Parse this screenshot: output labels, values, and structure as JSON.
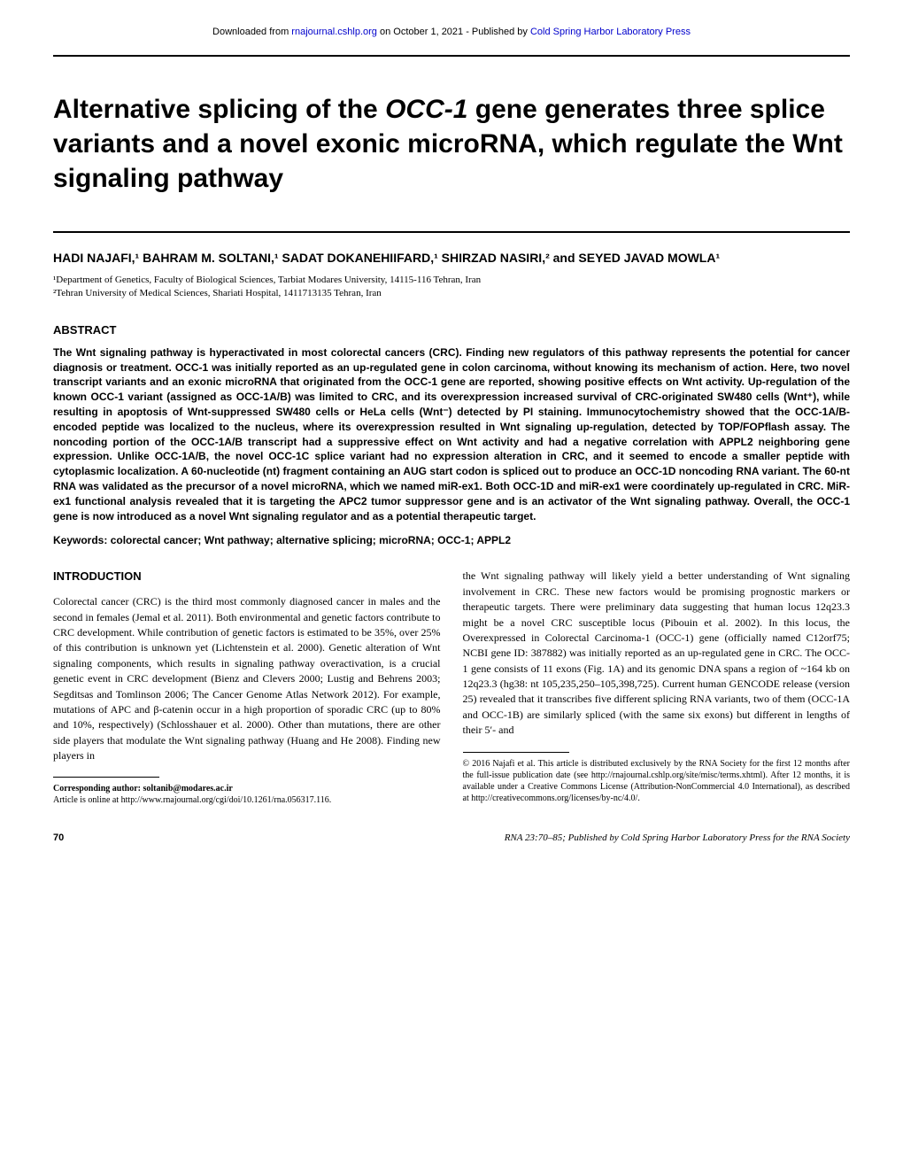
{
  "download": {
    "prefix": "Downloaded from ",
    "link1_text": "rnajournal.cshlp.org",
    "middle": " on October 1, 2021 - Published by ",
    "link2_text": "Cold Spring Harbor Laboratory Press"
  },
  "title_parts": {
    "p1": "Alternative splicing of the ",
    "gene": "OCC-1",
    "p2": " gene generates three splice variants and a novel exonic microRNA, which regulate the Wnt signaling pathway"
  },
  "authors": "HADI NAJAFI,¹ BAHRAM M. SOLTANI,¹ SADAT DOKANEHIIFARD,¹ SHIRZAD NASIRI,² and SEYED JAVAD MOWLA¹",
  "affiliations": {
    "a1": "¹Department of Genetics, Faculty of Biological Sciences, Tarbiat Modares University, 14115-116 Tehran, Iran",
    "a2": "²Tehran University of Medical Sciences, Shariati Hospital, 1411713135 Tehran, Iran"
  },
  "abstract_heading": "ABSTRACT",
  "abstract_text": "The Wnt signaling pathway is hyperactivated in most colorectal cancers (CRC). Finding new regulators of this pathway represents the potential for cancer diagnosis or treatment. OCC-1 was initially reported as an up-regulated gene in colon carcinoma, without knowing its mechanism of action. Here, two novel transcript variants and an exonic microRNA that originated from the OCC-1 gene are reported, showing positive effects on Wnt activity. Up-regulation of the known OCC-1 variant (assigned as OCC-1A/B) was limited to CRC, and its overexpression increased survival of CRC-originated SW480 cells (Wnt⁺), while resulting in apoptosis of Wnt-suppressed SW480 cells or HeLa cells (Wnt⁻) detected by PI staining. Immunocytochemistry showed that the OCC-1A/B-encoded peptide was localized to the nucleus, where its overexpression resulted in Wnt signaling up-regulation, detected by TOP/FOPflash assay. The noncoding portion of the OCC-1A/B transcript had a suppressive effect on Wnt activity and had a negative correlation with APPL2 neighboring gene expression. Unlike OCC-1A/B, the novel OCC-1C splice variant had no expression alteration in CRC, and it seemed to encode a smaller peptide with cytoplasmic localization. A 60-nucleotide (nt) fragment containing an AUG start codon is spliced out to produce an OCC-1D noncoding RNA variant. The 60-nt RNA was validated as the precursor of a novel microRNA, which we named miR-ex1. Both OCC-1D and miR-ex1 were coordinately up-regulated in CRC. MiR-ex1 functional analysis revealed that it is targeting the APC2 tumor suppressor gene and is an activator of the Wnt signaling pathway. Overall, the OCC-1 gene is now introduced as a novel Wnt signaling regulator and as a potential therapeutic target.",
  "keywords_label": "Keywords:  ",
  "keywords_text": "colorectal cancer; Wnt pathway; alternative splicing; microRNA; OCC-1; APPL2",
  "intro_heading": "INTRODUCTION",
  "intro_left": "Colorectal cancer (CRC) is the third most commonly diagnosed cancer in males and the second in females (Jemal et al. 2011). Both environmental and genetic factors contribute to CRC development. While contribution of genetic factors is estimated to be 35%, over 25% of this contribution is unknown yet (Lichtenstein et al. 2000). Genetic alteration of Wnt signaling components, which results in signaling pathway overactivation, is a crucial genetic event in CRC development (Bienz and Clevers 2000; Lustig and Behrens 2003; Segditsas and Tomlinson 2006; The Cancer Genome Atlas Network 2012). For example, mutations of APC and β-catenin occur in a high proportion of sporadic CRC (up to 80% and 10%, respectively) (Schlosshauer et al. 2000). Other than mutations, there are other side players that modulate the Wnt signaling pathway (Huang and He 2008). Finding new players in",
  "intro_right": "the Wnt signaling pathway will likely yield a better understanding of Wnt signaling involvement in CRC. These new factors would be promising prognostic markers or therapeutic targets. There were preliminary data suggesting that human locus 12q23.3 might be a novel CRC susceptible locus (Pibouin et al. 2002). In this locus, the Overexpressed in Colorectal Carcinoma-1 (OCC-1) gene (officially named C12orf75; NCBI gene ID: 387882) was initially reported as an up-regulated gene in CRC. The OCC-1 gene consists of 11 exons (Fig. 1A) and its genomic DNA spans a region of ~164 kb on 12q23.3 (hg38: nt 105,235,250–105,398,725). Current human GENCODE release (version 25) revealed that it transcribes five different splicing RNA variants, two of them (OCC-1A and OCC-1B) are similarly spliced (with the same six exons) but different in lengths of their 5′- and",
  "footnote_left": {
    "corr": "Corresponding author: soltanib@modares.ac.ir",
    "article": "Article is online at http://www.rnajournal.org/cgi/doi/10.1261/rna.056317.116."
  },
  "footnote_right": "© 2016 Najafi et al.   This article is distributed exclusively by the RNA Society for the first 12 months after the full-issue publication date (see http://rnajournal.cshlp.org/site/misc/terms.xhtml). After 12 months, it is available under a Creative Commons License (Attribution-NonCommercial 4.0 International), as described at http://creativecommons.org/licenses/by-nc/4.0/.",
  "footer": {
    "page": "70",
    "citation": "RNA 23:70–85; Published by Cold Spring Harbor Laboratory Press for the RNA Society"
  }
}
